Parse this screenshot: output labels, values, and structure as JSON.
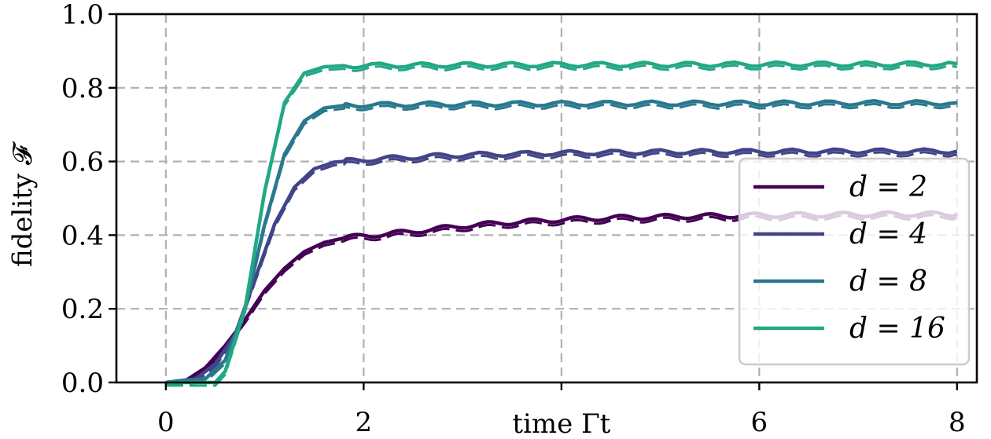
{
  "chart_data": {
    "type": "line",
    "title": "",
    "xlabel": "time Γt",
    "ylabel": "fidelity 𝓕",
    "xlim": [
      -0.5,
      8.2
    ],
    "ylim": [
      0.0,
      1.0
    ],
    "x_ticks": [
      0,
      2,
      4,
      6,
      8
    ],
    "x_tick_labels": [
      "0",
      "2",
      "",
      "6",
      "8"
    ],
    "y_ticks": [
      0.0,
      0.2,
      0.4,
      0.6,
      0.8,
      1.0
    ],
    "y_tick_labels": [
      "0.0",
      "0.2",
      "0.4",
      "0.6",
      "0.8",
      "1.0"
    ],
    "grid": true,
    "legend_position": "lower-right",
    "series": [
      {
        "name": "d = 2",
        "color": "#440154",
        "x": [
          0,
          0.2,
          0.4,
          0.6,
          0.8,
          1.0,
          1.2,
          1.4,
          1.6,
          1.8,
          2.0,
          2.5,
          3.0,
          3.5,
          4.0,
          4.5,
          5.0,
          5.5,
          6.0,
          6.5,
          7.0,
          7.5,
          8.0
        ],
        "values": [
          0.0,
          0.005,
          0.04,
          0.1,
          0.17,
          0.25,
          0.31,
          0.355,
          0.38,
          0.392,
          0.398,
          0.41,
          0.425,
          0.435,
          0.442,
          0.447,
          0.45,
          0.452,
          0.454,
          0.455,
          0.456,
          0.457,
          0.457
        ]
      },
      {
        "name": "d = 4",
        "color": "#414487",
        "x": [
          0,
          0.3,
          0.5,
          0.7,
          0.9,
          1.1,
          1.3,
          1.5,
          1.7,
          2.0,
          2.5,
          3.0,
          4.0,
          5.0,
          6.0,
          7.0,
          8.0
        ],
        "values": [
          0.0,
          0.01,
          0.05,
          0.13,
          0.28,
          0.43,
          0.53,
          0.58,
          0.598,
          0.605,
          0.612,
          0.618,
          0.623,
          0.626,
          0.627,
          0.628,
          0.628
        ]
      },
      {
        "name": "d = 8",
        "color": "#2a788e",
        "x": [
          0,
          0.4,
          0.6,
          0.8,
          1.0,
          1.2,
          1.4,
          1.6,
          1.8,
          2.0,
          3.0,
          4.0,
          5.0,
          6.0,
          7.0,
          8.0
        ],
        "values": [
          0.0,
          0.01,
          0.06,
          0.2,
          0.43,
          0.62,
          0.71,
          0.745,
          0.752,
          0.754,
          0.756,
          0.757,
          0.758,
          0.758,
          0.759,
          0.759
        ]
      },
      {
        "name": "d = 16",
        "color": "#22a884",
        "x": [
          0,
          0.5,
          0.6,
          0.8,
          1.0,
          1.2,
          1.4,
          1.6,
          1.8,
          2.0,
          3.0,
          4.0,
          5.0,
          6.0,
          7.0,
          8.0
        ],
        "values": [
          0.0,
          0.0,
          0.03,
          0.2,
          0.52,
          0.76,
          0.84,
          0.857,
          0.86,
          0.861,
          0.862,
          0.863,
          0.863,
          0.864,
          0.864,
          0.865
        ]
      }
    ]
  }
}
